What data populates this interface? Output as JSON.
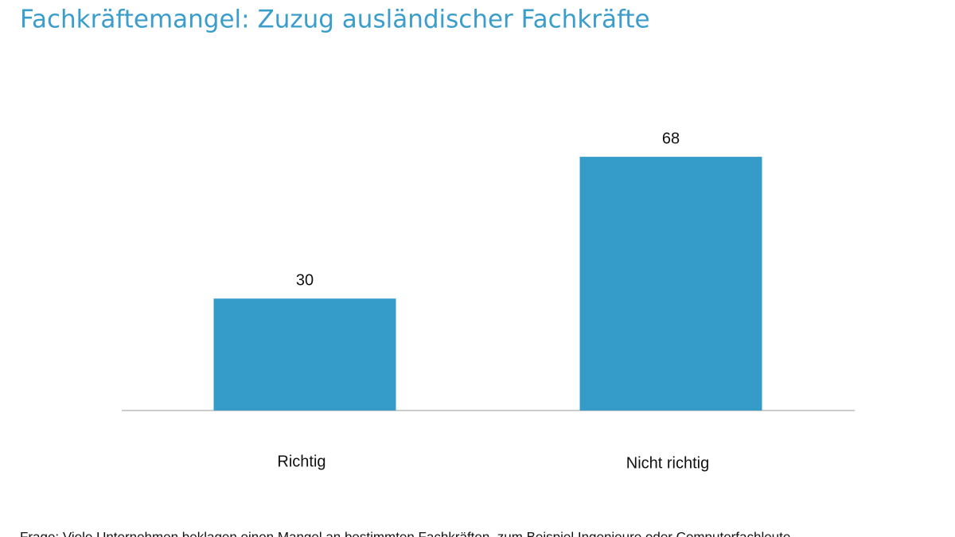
{
  "chart_data": {
    "type": "bar",
    "title": "Fachkräftemangel: Zuzug ausländischer Fachkräfte",
    "categories": [
      "Richtig",
      "Nicht richtig"
    ],
    "values": [
      30,
      68
    ],
    "color": "#359cca",
    "footnote": "Frage: Viele Unternehmen beklagen einen Mangel an bestimmten Fachkräften, zum Beispiel Ingenieure oder Computerfachleute."
  }
}
